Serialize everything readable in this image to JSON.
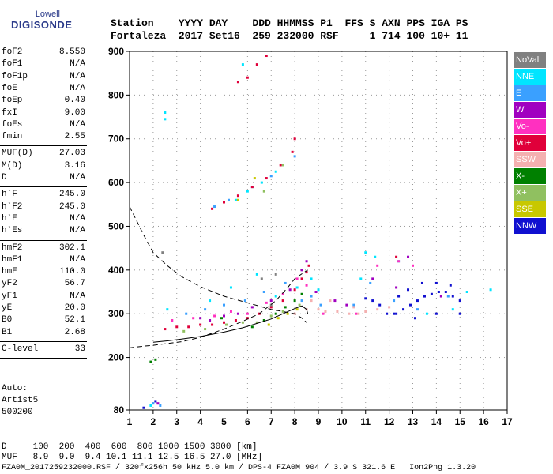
{
  "logo": {
    "line1": "Lowell",
    "line2": "DIGISONDE"
  },
  "header": {
    "line1": "Station    YYYY DAY    DDD HHMMSS P1  FFS S AXN PPS IGA PS",
    "line2": "Fortaleza  2017 Set16  259 232000 RSF     1 714 100 10+ 11"
  },
  "params": [
    {
      "k": "foF2",
      "v": "8.550"
    },
    {
      "k": "foF1",
      "v": "N/A"
    },
    {
      "k": "foF1p",
      "v": "N/A"
    },
    {
      "k": "foE",
      "v": "N/A"
    },
    {
      "k": "foEp",
      "v": "0.40"
    },
    {
      "k": "fxI",
      "v": "9.00"
    },
    {
      "k": "foEs",
      "v": "N/A"
    },
    {
      "k": "fmin",
      "v": "2.55"
    },
    {
      "sep": true
    },
    {
      "k": "MUF(D)",
      "v": "27.03"
    },
    {
      "k": "M(D)",
      "v": "3.16"
    },
    {
      "k": "D",
      "v": "N/A"
    },
    {
      "sep": true
    },
    {
      "k": "h`F",
      "v": "245.0"
    },
    {
      "k": "h`F2",
      "v": "245.0"
    },
    {
      "k": "h`E",
      "v": "N/A"
    },
    {
      "k": "h`Es",
      "v": "N/A"
    },
    {
      "sep": true
    },
    {
      "k": "hmF2",
      "v": "302.1"
    },
    {
      "k": "hmF1",
      "v": "N/A"
    },
    {
      "k": "hmE",
      "v": "110.0"
    },
    {
      "k": "yF2",
      "v": "56.7"
    },
    {
      "k": "yF1",
      "v": "N/A"
    },
    {
      "k": "yE",
      "v": "20.0"
    },
    {
      "k": "B0",
      "v": "52.1"
    },
    {
      "k": "B1",
      "v": "2.68"
    },
    {
      "sep": true
    },
    {
      "k": "C-level",
      "v": "33"
    },
    {
      "sep": true
    }
  ],
  "auto": {
    "line1": "Auto:",
    "line2": "Artist5",
    "line3": "500200"
  },
  "bottom": {
    "d_line": "D     100  200  400  600  800 1000 1500 3000 [km]",
    "muf_line": "MUF   8.9  9.0  9.4 10.1 11.1 12.5 16.5 27.0 [MHz]",
    "file_line": "FZA0M_2017259232000.RSF / 320fx256h 50 kHz 5.0 km / DPS-4 FZA0M 904 / 3.9 S 321.6 E   Ion2Png 1.3.20"
  },
  "legend": [
    {
      "label": "NoVal",
      "color": "#808080",
      "text": "#ffffff"
    },
    {
      "label": "NNE",
      "color": "#00e5ff",
      "text": "#ffffff"
    },
    {
      "label": "E",
      "color": "#3aa0ff",
      "text": "#ffffff"
    },
    {
      "label": "W",
      "color": "#a000c0",
      "text": "#ffffff"
    },
    {
      "label": "Vo-",
      "color": "#ff30c0",
      "text": "#ffffff"
    },
    {
      "label": "Vo+",
      "color": "#e0003a",
      "text": "#ffffff"
    },
    {
      "label": "SSW",
      "color": "#f4b0b0",
      "text": "#ffffff"
    },
    {
      "label": "X-",
      "color": "#008000",
      "text": "#ffffff"
    },
    {
      "label": "X+",
      "color": "#90c060",
      "text": "#ffffff"
    },
    {
      "label": "SSE",
      "color": "#c8c800",
      "text": "#ffffff"
    },
    {
      "label": "NNW",
      "color": "#1010d0",
      "text": "#ffffff"
    }
  ],
  "chart_data": {
    "type": "scatter",
    "title": "",
    "xlabel": "",
    "ylabel": "",
    "xlim": [
      1,
      17
    ],
    "ylim": [
      80,
      900
    ],
    "x_ticks": [
      1,
      2,
      3,
      4,
      5,
      6,
      7,
      8,
      9,
      10,
      11,
      12,
      13,
      14,
      15,
      16,
      17
    ],
    "y_ticks": [
      80,
      200,
      300,
      400,
      500,
      600,
      700,
      800,
      900
    ],
    "grid": true,
    "legend_position": "right",
    "series": [
      {
        "name": "NNE",
        "color": "#00e5ff",
        "points": [
          [
            2.5,
            760
          ],
          [
            2.5,
            745
          ],
          [
            5.5,
            560
          ],
          [
            6.0,
            580
          ],
          [
            6.6,
            600
          ],
          [
            7.2,
            625
          ],
          [
            5.8,
            870
          ],
          [
            8.7,
            380
          ],
          [
            9.0,
            355
          ],
          [
            10.8,
            380
          ],
          [
            11.0,
            440
          ],
          [
            11.4,
            430
          ],
          [
            12.4,
            420
          ],
          [
            13.6,
            300
          ],
          [
            14.7,
            310
          ],
          [
            15.3,
            350
          ],
          [
            16.3,
            355
          ],
          [
            1.9,
            90
          ],
          [
            2.6,
            310
          ],
          [
            4.4,
            330
          ],
          [
            5.3,
            360
          ],
          [
            6.4,
            390
          ],
          [
            7.2,
            340
          ],
          [
            8.1,
            360
          ]
        ]
      },
      {
        "name": "E",
        "color": "#3aa0ff",
        "points": [
          [
            2.0,
            95
          ],
          [
            2.3,
            90
          ],
          [
            4.6,
            545
          ],
          [
            5.2,
            560
          ],
          [
            6.2,
            590
          ],
          [
            7.0,
            615
          ],
          [
            8.0,
            660
          ],
          [
            3.4,
            300
          ],
          [
            4.2,
            310
          ],
          [
            5.0,
            320
          ],
          [
            5.9,
            330
          ],
          [
            6.7,
            350
          ],
          [
            7.6,
            370
          ],
          [
            8.3,
            330
          ],
          [
            8.7,
            340
          ],
          [
            9.1,
            320
          ],
          [
            10.5,
            320
          ],
          [
            11.2,
            370
          ],
          [
            12.2,
            330
          ],
          [
            13.2,
            310
          ],
          [
            14.5,
            340
          ]
        ]
      },
      {
        "name": "W",
        "color": "#a000c0",
        "points": [
          [
            2.2,
            95
          ],
          [
            4.0,
            290
          ],
          [
            4.4,
            285
          ],
          [
            5.0,
            295
          ],
          [
            5.6,
            300
          ],
          [
            6.2,
            315
          ],
          [
            7.0,
            330
          ],
          [
            7.8,
            355
          ],
          [
            8.3,
            400
          ],
          [
            8.5,
            420
          ],
          [
            8.9,
            350
          ],
          [
            9.7,
            330
          ],
          [
            10.2,
            320
          ],
          [
            11.3,
            380
          ],
          [
            12.3,
            360
          ],
          [
            12.8,
            430
          ],
          [
            13.5,
            340
          ],
          [
            14.2,
            340
          ]
        ]
      },
      {
        "name": "Vo-",
        "color": "#ff30c0",
        "points": [
          [
            2.8,
            285
          ],
          [
            3.7,
            290
          ],
          [
            4.6,
            295
          ],
          [
            5.3,
            305
          ],
          [
            6.0,
            300
          ],
          [
            6.8,
            325
          ],
          [
            7.5,
            345
          ],
          [
            8.1,
            380
          ],
          [
            8.5,
            365
          ],
          [
            9.2,
            300
          ],
          [
            10.6,
            300
          ],
          [
            11.5,
            410
          ],
          [
            12.4,
            420
          ],
          [
            13.0,
            410
          ]
        ]
      },
      {
        "name": "Vo+",
        "color": "#e0003a",
        "points": [
          [
            2.5,
            265
          ],
          [
            3.0,
            270
          ],
          [
            3.5,
            270
          ],
          [
            4.0,
            275
          ],
          [
            4.5,
            275
          ],
          [
            5.0,
            280
          ],
          [
            5.5,
            285
          ],
          [
            6.0,
            290
          ],
          [
            6.5,
            300
          ],
          [
            7.0,
            315
          ],
          [
            7.5,
            330
          ],
          [
            8.0,
            355
          ],
          [
            8.3,
            380
          ],
          [
            8.5,
            395
          ],
          [
            8.6,
            410
          ],
          [
            12.3,
            430
          ],
          [
            6.0,
            840
          ],
          [
            6.4,
            870
          ],
          [
            6.8,
            890
          ],
          [
            5.6,
            830
          ],
          [
            4.5,
            540
          ],
          [
            5.0,
            555
          ],
          [
            5.6,
            570
          ],
          [
            6.2,
            590
          ],
          [
            6.8,
            610
          ],
          [
            7.4,
            640
          ],
          [
            7.9,
            670
          ],
          [
            8.0,
            700
          ]
        ]
      },
      {
        "name": "SSW",
        "color": "#f4b0b0",
        "points": [
          [
            8.0,
            300
          ],
          [
            8.5,
            310
          ],
          [
            9.0,
            310
          ],
          [
            9.3,
            305
          ],
          [
            9.8,
            305
          ],
          [
            10.3,
            300
          ],
          [
            10.7,
            300
          ],
          [
            11.0,
            305
          ],
          [
            11.5,
            310
          ],
          [
            12.0,
            315
          ],
          [
            8.7,
            330
          ],
          [
            9.5,
            330
          ],
          [
            10.5,
            315
          ]
        ]
      },
      {
        "name": "X-",
        "color": "#008000",
        "points": [
          [
            1.9,
            190
          ],
          [
            2.1,
            195
          ],
          [
            6.2,
            270
          ],
          [
            6.7,
            285
          ],
          [
            7.2,
            300
          ],
          [
            7.6,
            315
          ],
          [
            8.0,
            330
          ],
          [
            8.3,
            345
          ],
          [
            4.9,
            290
          ]
        ]
      },
      {
        "name": "X+",
        "color": "#90c060",
        "points": [
          [
            3.3,
            260
          ],
          [
            4.2,
            265
          ],
          [
            5.1,
            275
          ],
          [
            5.8,
            280
          ],
          [
            6.4,
            280
          ],
          [
            7.0,
            295
          ],
          [
            7.5,
            305
          ],
          [
            8.2,
            320
          ],
          [
            6.7,
            580
          ],
          [
            7.5,
            640
          ]
        ]
      },
      {
        "name": "SSE",
        "color": "#c8c800",
        "points": [
          [
            6.9,
            275
          ],
          [
            7.3,
            290
          ],
          [
            7.7,
            300
          ],
          [
            8.1,
            310
          ],
          [
            5.6,
            560
          ],
          [
            6.3,
            610
          ]
        ]
      },
      {
        "name": "NNW",
        "color": "#1010d0",
        "points": [
          [
            1.6,
            85
          ],
          [
            2.1,
            100
          ],
          [
            11.0,
            335
          ],
          [
            11.3,
            330
          ],
          [
            11.6,
            320
          ],
          [
            11.9,
            300
          ],
          [
            12.3,
            300
          ],
          [
            12.6,
            310
          ],
          [
            12.9,
            320
          ],
          [
            13.2,
            330
          ],
          [
            13.5,
            340
          ],
          [
            13.8,
            345
          ],
          [
            14.1,
            350
          ],
          [
            14.4,
            350
          ],
          [
            14.7,
            340
          ],
          [
            15.0,
            330
          ],
          [
            12.4,
            340
          ],
          [
            12.8,
            355
          ],
          [
            13.4,
            370
          ],
          [
            14.0,
            370
          ],
          [
            14.6,
            365
          ],
          [
            12.2,
            300
          ],
          [
            13.1,
            290
          ],
          [
            14.0,
            300
          ],
          [
            15.0,
            300
          ]
        ]
      },
      {
        "name": "NoVal",
        "color": "#808080",
        "points": [
          [
            2.4,
            440
          ],
          [
            6.6,
            380
          ],
          [
            7.0,
            320
          ],
          [
            7.2,
            390
          ]
        ]
      }
    ],
    "curves": [
      {
        "style": "dashed",
        "points": [
          [
            1,
            545
          ],
          [
            1.6,
            480
          ],
          [
            2,
            440
          ],
          [
            2.6,
            410
          ],
          [
            3.2,
            385
          ],
          [
            4,
            362
          ],
          [
            5,
            340
          ],
          [
            6,
            325
          ],
          [
            7,
            310
          ],
          [
            7.5,
            305
          ],
          [
            8,
            300
          ],
          [
            8.3,
            290
          ],
          [
            8.5,
            280
          ]
        ]
      },
      {
        "style": "dashed",
        "points": [
          [
            1,
            222
          ],
          [
            1.6,
            226
          ],
          [
            2,
            228
          ],
          [
            2.6,
            232
          ],
          [
            3.2,
            236
          ],
          [
            4,
            246
          ],
          [
            5,
            265
          ],
          [
            5.8,
            283
          ],
          [
            6.5,
            300
          ],
          [
            7.2,
            330
          ],
          [
            7.7,
            360
          ],
          [
            8,
            380
          ],
          [
            8.4,
            395
          ],
          [
            8.55,
            400
          ]
        ]
      },
      {
        "style": "solid",
        "points": [
          [
            2,
            235
          ],
          [
            2.6,
            238
          ],
          [
            3.2,
            242
          ],
          [
            4,
            248
          ],
          [
            5,
            258
          ],
          [
            5.8,
            268
          ],
          [
            6.4,
            278
          ],
          [
            7,
            288
          ],
          [
            7.5,
            300
          ],
          [
            8,
            312
          ],
          [
            8.3,
            318
          ],
          [
            8.5,
            310
          ],
          [
            8.55,
            300
          ]
        ]
      }
    ]
  }
}
